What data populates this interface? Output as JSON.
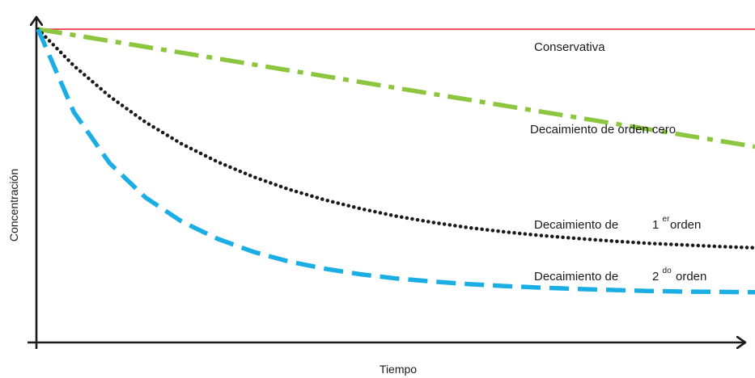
{
  "chart_data": {
    "type": "line",
    "title": "",
    "xlabel": "Tiempo",
    "ylabel": "Concentración",
    "xlim": [
      0,
      1
    ],
    "ylim": [
      0,
      1
    ],
    "grid": false,
    "legend": "inline labels",
    "x": [
      0,
      0.05,
      0.1,
      0.15,
      0.2,
      0.25,
      0.3,
      0.35,
      0.4,
      0.45,
      0.5,
      0.55,
      0.6,
      0.65,
      0.7,
      0.75,
      0.8,
      0.85,
      0.9,
      0.95,
      1.0
    ],
    "series": [
      {
        "label_text": "Conservativa",
        "color": "#e8414b",
        "style": "solid",
        "values": [
          0.96,
          0.96,
          0.96,
          0.96,
          0.96,
          0.96,
          0.96,
          0.96,
          0.96,
          0.96,
          0.96,
          0.96,
          0.96,
          0.96,
          0.96,
          0.96,
          0.96,
          0.96,
          0.96,
          0.96,
          0.96
        ]
      },
      {
        "label_text": "Decaimiento de orden cero",
        "color": "#8cc63f",
        "style": "dashdot",
        "values": [
          0.96,
          0.942,
          0.924,
          0.906,
          0.888,
          0.87,
          0.852,
          0.834,
          0.816,
          0.798,
          0.78,
          0.762,
          0.744,
          0.726,
          0.708,
          0.69,
          0.672,
          0.654,
          0.636,
          0.618,
          0.6
        ]
      },
      {
        "label_text_main": "Decaimiento de",
        "label_ordinal": "1",
        "label_sup": "er",
        "label_text_end": "orden",
        "color": "#1a1a1a",
        "style": "dotted",
        "values": [
          0.96,
          0.848,
          0.754,
          0.675,
          0.609,
          0.554,
          0.508,
          0.469,
          0.437,
          0.41,
          0.387,
          0.368,
          0.352,
          0.339,
          0.328,
          0.319,
          0.311,
          0.304,
          0.299,
          0.294,
          0.29
        ]
      },
      {
        "label_text_main": "Decaimiento de",
        "label_ordinal": "2",
        "label_sup": "do",
        "label_text_end": "orden",
        "color": "#1aaee5",
        "style": "dashed",
        "values": [
          0.96,
          0.706,
          0.549,
          0.444,
          0.371,
          0.318,
          0.278,
          0.248,
          0.226,
          0.209,
          0.196,
          0.187,
          0.179,
          0.173,
          0.168,
          0.164,
          0.161,
          0.158,
          0.156,
          0.155,
          0.154
        ]
      }
    ]
  }
}
